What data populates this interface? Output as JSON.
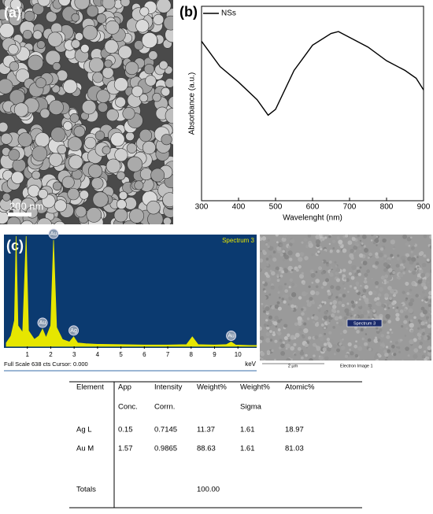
{
  "panels": {
    "a": {
      "label": "(a)",
      "scale_bar": "200 nm"
    },
    "b": {
      "label": "(b)"
    },
    "c": {
      "label": "(c)",
      "electron_image": {
        "marker": "Spectrum 3",
        "scale_bar": "2 µm",
        "caption": "Electron Image 1"
      }
    }
  },
  "chart_data": [
    {
      "type": "line",
      "x_label": "Wavelenght (nm)",
      "y_label": "Absorbance (a.u.)",
      "x": [
        300,
        350,
        400,
        450,
        480,
        500,
        550,
        600,
        650,
        670,
        700,
        750,
        800,
        850,
        880,
        900
      ],
      "series": [
        {
          "name": "NSs",
          "color": "#000000",
          "values": [
            0.82,
            0.69,
            0.61,
            0.52,
            0.44,
            0.47,
            0.67,
            0.8,
            0.86,
            0.87,
            0.84,
            0.79,
            0.72,
            0.67,
            0.63,
            0.57
          ]
        }
      ],
      "xlim": [
        300,
        900
      ],
      "xticks": [
        300,
        400,
        500,
        600,
        700,
        800,
        900
      ],
      "ylim": [
        0,
        1
      ],
      "legend": "upper left"
    },
    {
      "type": "spectrum",
      "title": "Spectrum 3",
      "footer": "Full Scale 638 cts Cursor: 0.000",
      "x_unit": "keV",
      "color": "#e6e600",
      "x": [
        0.1,
        0.3,
        0.45,
        0.52,
        0.6,
        0.8,
        0.95,
        1.05,
        1.3,
        1.5,
        1.65,
        1.8,
        2.0,
        2.12,
        2.25,
        2.5,
        2.8,
        2.98,
        3.15,
        3.5,
        4,
        5,
        6,
        7,
        7.8,
        8.05,
        8.3,
        9,
        9.5,
        9.71,
        9.9,
        10.5,
        10.8
      ],
      "values": [
        20,
        60,
        150,
        638,
        120,
        80,
        638,
        90,
        40,
        60,
        100,
        50,
        120,
        615,
        110,
        40,
        25,
        55,
        20,
        15,
        12,
        10,
        8,
        8,
        10,
        55,
        10,
        8,
        10,
        25,
        8,
        5,
        5
      ],
      "xlim": [
        0,
        10.8
      ],
      "xticks": [
        1,
        2,
        3,
        4,
        5,
        6,
        7,
        8,
        9,
        10
      ],
      "ylim": [
        0,
        638
      ],
      "annotations": [
        {
          "text": "Au",
          "x": 2.12,
          "y": 615
        },
        {
          "text": "Au",
          "x": 1.65,
          "y": 100
        },
        {
          "text": "Ag",
          "x": 2.98,
          "y": 55
        },
        {
          "text": "Au",
          "x": 9.71,
          "y": 25
        }
      ]
    }
  ],
  "table": {
    "header": [
      [
        "Element",
        "App",
        "Intensity",
        "Weight%",
        "Weight%",
        "Atomic%"
      ],
      [
        null,
        "Conc.",
        "Corrn.",
        null,
        "Sigma",
        null
      ]
    ],
    "rows": [
      [
        "Ag L",
        "0.15",
        "0.7145",
        "11.37",
        "1.61",
        "18.97"
      ],
      [
        "Au M",
        "1.57",
        "0.9865",
        "88.63",
        "1.61",
        "81.03"
      ],
      [
        "Totals",
        null,
        null,
        "100.00",
        null,
        null
      ]
    ]
  }
}
